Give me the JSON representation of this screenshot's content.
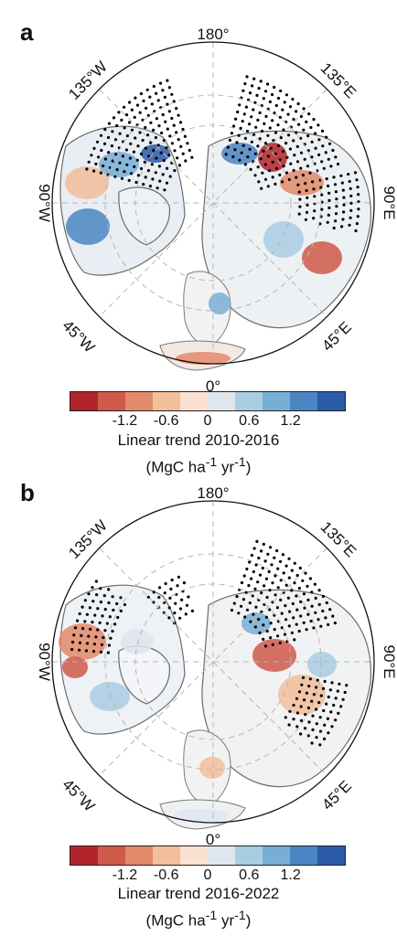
{
  "colors": {
    "ocean": "#ffffff",
    "coastline": "#5a5a5a",
    "grid": "#b5b5b5",
    "stipple": "#000000",
    "colorbar": [
      "#b2242b",
      "#cf5a4a",
      "#e38a6a",
      "#f2bf9a",
      "#fbe1d2",
      "#dfe6ee",
      "#a9cde3",
      "#78aed6",
      "#4b86c3",
      "#2c5ba8"
    ]
  },
  "panels": [
    {
      "letter": "a",
      "labels": {
        "top": "180°",
        "bottom": "0°",
        "left": "90°W",
        "right": "90°E",
        "upper_left": "135°W",
        "upper_right": "135°E",
        "lower_left": "45°W",
        "lower_right": "45°E"
      },
      "colorbar": {
        "ticks": [
          "-1.2",
          "-0.6",
          "0",
          "0.6",
          "1.2"
        ],
        "title": "Linear trend 2010-2016",
        "units_prefix": "(MgC ha",
        "units_exp1": "-1",
        "units_mid": " yr",
        "units_exp2": "-1",
        "units_suffix": ")"
      }
    },
    {
      "letter": "b",
      "labels": {
        "top": "180°",
        "bottom": "0°",
        "left": "90°W",
        "right": "90°E",
        "upper_left": "135°W",
        "upper_right": "135°E",
        "lower_left": "45°W",
        "lower_right": "45°E"
      },
      "colorbar": {
        "ticks": [
          "-1.2",
          "-0.6",
          "0",
          "0.6",
          "1.2"
        ],
        "title": "Linear trend 2016-2022",
        "units_prefix": "(MgC ha",
        "units_exp1": "-1",
        "units_mid": " yr",
        "units_exp2": "-1",
        "units_suffix": ")"
      }
    }
  ]
}
